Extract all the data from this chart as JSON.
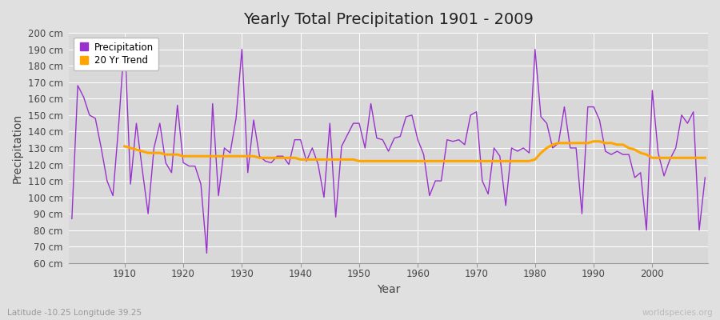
{
  "title": "Yearly Total Precipitation 1901 - 2009",
  "xlabel": "Year",
  "ylabel": "Precipitation",
  "subtitle": "Latitude -10.25 Longitude 39.25",
  "watermark": "worldspecies.org",
  "years": [
    1901,
    1902,
    1903,
    1904,
    1905,
    1906,
    1907,
    1908,
    1909,
    1910,
    1911,
    1912,
    1913,
    1914,
    1915,
    1916,
    1917,
    1918,
    1919,
    1920,
    1921,
    1922,
    1923,
    1924,
    1925,
    1926,
    1927,
    1928,
    1929,
    1930,
    1931,
    1932,
    1933,
    1934,
    1935,
    1936,
    1937,
    1938,
    1939,
    1940,
    1941,
    1942,
    1943,
    1944,
    1945,
    1946,
    1947,
    1948,
    1949,
    1950,
    1951,
    1952,
    1953,
    1954,
    1955,
    1956,
    1957,
    1958,
    1959,
    1960,
    1961,
    1962,
    1963,
    1964,
    1965,
    1966,
    1967,
    1968,
    1969,
    1970,
    1971,
    1972,
    1973,
    1974,
    1975,
    1976,
    1977,
    1978,
    1979,
    1980,
    1981,
    1982,
    1983,
    1984,
    1985,
    1986,
    1987,
    1988,
    1989,
    1990,
    1991,
    1992,
    1993,
    1994,
    1995,
    1996,
    1997,
    1998,
    1999,
    2000,
    2001,
    2002,
    2003,
    2004,
    2005,
    2006,
    2007,
    2008,
    2009
  ],
  "precipitation": [
    87,
    168,
    161,
    150,
    148,
    130,
    110,
    101,
    145,
    197,
    108,
    145,
    117,
    90,
    130,
    145,
    121,
    115,
    156,
    121,
    119,
    119,
    108,
    66,
    157,
    101,
    130,
    127,
    148,
    190,
    115,
    147,
    125,
    122,
    121,
    125,
    125,
    120,
    135,
    135,
    122,
    130,
    120,
    100,
    145,
    88,
    131,
    138,
    145,
    145,
    130,
    157,
    136,
    135,
    128,
    136,
    137,
    149,
    150,
    135,
    126,
    101,
    110,
    110,
    135,
    134,
    135,
    132,
    150,
    152,
    110,
    102,
    130,
    125,
    95,
    130,
    128,
    130,
    127,
    190,
    149,
    145,
    130,
    133,
    155,
    130,
    130,
    90,
    155,
    155,
    147,
    128,
    126,
    128,
    126,
    126,
    112,
    115,
    80,
    165,
    127,
    113,
    123,
    130,
    150,
    145,
    152,
    80,
    112
  ],
  "trend_years": [
    1910,
    1911,
    1912,
    1913,
    1914,
    1915,
    1916,
    1917,
    1918,
    1919,
    1920,
    1921,
    1922,
    1923,
    1924,
    1925,
    1926,
    1927,
    1928,
    1929,
    1930,
    1931,
    1932,
    1933,
    1934,
    1935,
    1936,
    1937,
    1938,
    1939,
    1940,
    1941,
    1942,
    1943,
    1944,
    1945,
    1946,
    1947,
    1948,
    1949,
    1950,
    1951,
    1952,
    1953,
    1954,
    1955,
    1956,
    1957,
    1958,
    1959,
    1960,
    1961,
    1962,
    1963,
    1964,
    1965,
    1966,
    1967,
    1968,
    1969,
    1970,
    1971,
    1972,
    1973,
    1974,
    1975,
    1976,
    1977,
    1978,
    1979,
    1980,
    1981,
    1982,
    1983,
    1984,
    1985,
    1986,
    1987,
    1988,
    1989,
    1990,
    1991,
    1992,
    1993,
    1994,
    1995,
    1996,
    1997,
    1998,
    1999,
    2000,
    2001,
    2002,
    2003,
    2004,
    2005,
    2006,
    2007,
    2008,
    2009
  ],
  "trend": [
    131,
    130,
    129,
    128,
    127,
    127,
    127,
    126,
    126,
    126,
    125,
    125,
    125,
    125,
    125,
    125,
    125,
    125,
    125,
    125,
    125,
    125,
    125,
    124,
    124,
    124,
    124,
    124,
    124,
    124,
    123,
    123,
    123,
    123,
    123,
    123,
    123,
    123,
    123,
    123,
    122,
    122,
    122,
    122,
    122,
    122,
    122,
    122,
    122,
    122,
    122,
    122,
    122,
    122,
    122,
    122,
    122,
    122,
    122,
    122,
    122,
    122,
    122,
    122,
    122,
    122,
    122,
    122,
    122,
    122,
    123,
    127,
    130,
    132,
    133,
    133,
    133,
    133,
    133,
    133,
    134,
    134,
    133,
    133,
    132,
    132,
    130,
    129,
    127,
    126,
    124,
    124,
    124,
    124,
    124,
    124,
    124,
    124,
    124,
    124
  ],
  "precip_color": "#9932CC",
  "trend_color": "#FFA500",
  "bg_color": "#E0E0E0",
  "plot_bg_color": "#D8D8D8",
  "grid_color": "#FFFFFF",
  "ylim": [
    60,
    200
  ],
  "xlim": [
    1901,
    2009
  ],
  "ytick_step": 10,
  "xtick_step": 10,
  "title_fontsize": 14,
  "axis_label_fontsize": 10,
  "tick_fontsize": 8.5,
  "legend_fontsize": 8.5
}
